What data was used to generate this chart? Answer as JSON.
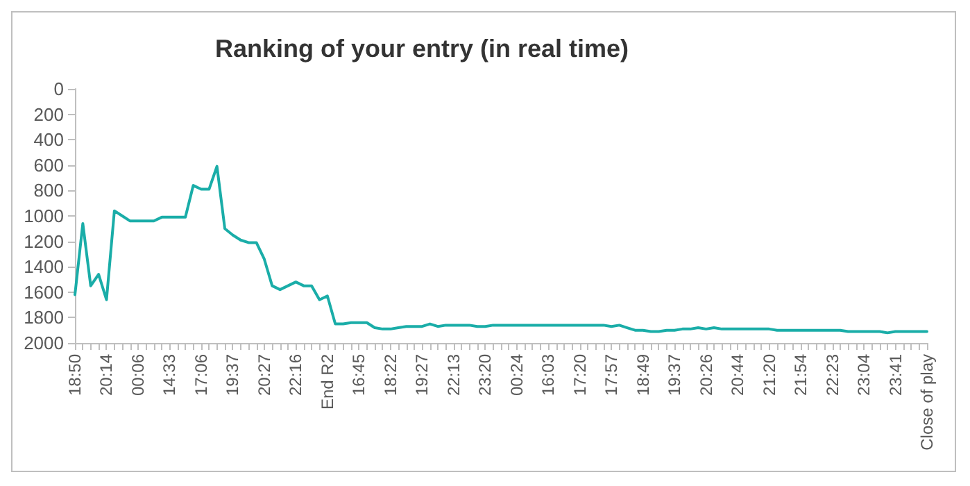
{
  "chart_data": {
    "type": "line",
    "title": "Ranking of your entry (in real time)",
    "categories": [
      "18:50",
      null,
      null,
      null,
      "20:14",
      null,
      null,
      null,
      "00:06",
      null,
      null,
      null,
      "14:33",
      null,
      null,
      null,
      "17:06",
      null,
      null,
      null,
      "19:37",
      null,
      null,
      null,
      "20:27",
      null,
      null,
      null,
      "22:16",
      null,
      null,
      null,
      "End R2",
      null,
      null,
      null,
      "16:45",
      null,
      null,
      null,
      "18:22",
      null,
      null,
      null,
      "19:27",
      null,
      null,
      null,
      "22:13",
      null,
      null,
      null,
      "23:20",
      null,
      null,
      null,
      "00:24",
      null,
      null,
      null,
      "16:03",
      null,
      null,
      null,
      "17:20",
      null,
      null,
      null,
      "17:57",
      null,
      null,
      null,
      "18:49",
      null,
      null,
      null,
      "19:37",
      null,
      null,
      null,
      "20:26",
      null,
      null,
      null,
      "20:44",
      null,
      null,
      null,
      "21:20",
      null,
      null,
      null,
      "21:54",
      null,
      null,
      null,
      "22:23",
      null,
      null,
      null,
      "23:04",
      null,
      null,
      null,
      "23:41",
      null,
      null,
      null,
      "Close of play"
    ],
    "series": [
      {
        "color": "#1aada8",
        "values": [
          1620,
          1060,
          1550,
          1460,
          1660,
          960,
          1000,
          1040,
          1040,
          1040,
          1040,
          1010,
          1010,
          1010,
          1010,
          760,
          790,
          790,
          610,
          1100,
          1150,
          1190,
          1210,
          1210,
          1340,
          1550,
          1580,
          1550,
          1520,
          1550,
          1550,
          1660,
          1630,
          1850,
          1850,
          1840,
          1840,
          1840,
          1880,
          1890,
          1890,
          1880,
          1870,
          1870,
          1870,
          1850,
          1870,
          1860,
          1860,
          1860,
          1860,
          1870,
          1870,
          1860,
          1860,
          1860,
          1860,
          1860,
          1860,
          1860,
          1860,
          1860,
          1860,
          1860,
          1860,
          1860,
          1860,
          1860,
          1870,
          1860,
          1880,
          1900,
          1900,
          1910,
          1910,
          1900,
          1900,
          1890,
          1890,
          1880,
          1890,
          1880,
          1890,
          1890,
          1890,
          1890,
          1890,
          1890,
          1890,
          1900,
          1900,
          1900,
          1900,
          1900,
          1900,
          1900,
          1900,
          1900,
          1910,
          1910,
          1910,
          1910,
          1910,
          1920,
          1910,
          1910,
          1910,
          1910,
          1910
        ]
      }
    ],
    "ylim": [
      2000,
      0
    ],
    "yticks": [
      0,
      200,
      400,
      600,
      800,
      1000,
      1200,
      1400,
      1600,
      1800,
      2000
    ],
    "grid": false,
    "marker": "none",
    "line_style": "solid"
  }
}
